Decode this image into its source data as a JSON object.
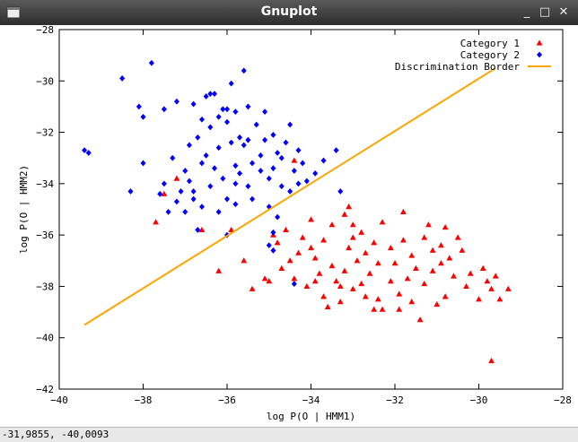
{
  "window": {
    "title": "Gnuplot",
    "minimize_icon": "minimize-icon",
    "maximize_icon": "maximize-icon",
    "close_icon": "close-icon"
  },
  "status": {
    "coordinates": "-31,9855, -40,0093"
  },
  "chart_data": {
    "type": "scatter",
    "xlabel": "log P(O | HMM1)",
    "ylabel": "log P(O | HMM2)",
    "xlim": [
      -40,
      -28
    ],
    "ylim": [
      -42,
      -28
    ],
    "xticks": [
      -40,
      -38,
      -36,
      -34,
      -32,
      -30,
      -28
    ],
    "yticks": [
      -42,
      -40,
      -38,
      -36,
      -34,
      -32,
      -30,
      -28
    ],
    "xtick_labels": [
      "−40",
      "−38",
      "−36",
      "−34",
      "−32",
      "−30",
      "−28"
    ],
    "ytick_labels": [
      "−42",
      "−40",
      "−38",
      "−36",
      "−34",
      "−32",
      "−30",
      "−28"
    ],
    "grid": false,
    "legend_position": "top-right",
    "series": [
      {
        "name": "Category 1",
        "marker": "triangle",
        "color": "#ff0000",
        "points": [
          [
            -37.7,
            -35.5
          ],
          [
            -37.5,
            -34.4
          ],
          [
            -37.2,
            -33.8
          ],
          [
            -36.2,
            -37.4
          ],
          [
            -35.9,
            -35.8
          ],
          [
            -35.6,
            -37.0
          ],
          [
            -35.4,
            -38.1
          ],
          [
            -35.1,
            -37.7
          ],
          [
            -34.9,
            -36.0
          ],
          [
            -34.8,
            -36.3
          ],
          [
            -34.7,
            -37.3
          ],
          [
            -34.6,
            -35.8
          ],
          [
            -34.5,
            -37.0
          ],
          [
            -34.4,
            -37.7
          ],
          [
            -34.4,
            -33.1
          ],
          [
            -34.3,
            -36.7
          ],
          [
            -34.2,
            -36.1
          ],
          [
            -34.1,
            -38.0
          ],
          [
            -34.0,
            -36.5
          ],
          [
            -33.9,
            -36.9
          ],
          [
            -33.9,
            -37.8
          ],
          [
            -33.8,
            -37.5
          ],
          [
            -33.7,
            -36.2
          ],
          [
            -33.7,
            -38.4
          ],
          [
            -33.6,
            -38.8
          ],
          [
            -33.5,
            -35.6
          ],
          [
            -33.5,
            -37.2
          ],
          [
            -33.4,
            -37.8
          ],
          [
            -33.3,
            -38.0
          ],
          [
            -33.3,
            -38.6
          ],
          [
            -33.2,
            -35.2
          ],
          [
            -33.2,
            -37.4
          ],
          [
            -33.1,
            -34.9
          ],
          [
            -33.1,
            -36.5
          ],
          [
            -33.0,
            -36.1
          ],
          [
            -33.0,
            -38.1
          ],
          [
            -32.9,
            -37.0
          ],
          [
            -32.8,
            -35.9
          ],
          [
            -32.8,
            -37.9
          ],
          [
            -32.7,
            -38.4
          ],
          [
            -32.7,
            -36.7
          ],
          [
            -32.6,
            -37.5
          ],
          [
            -32.5,
            -38.9
          ],
          [
            -32.5,
            -36.3
          ],
          [
            -32.4,
            -37.1
          ],
          [
            -32.4,
            -38.5
          ],
          [
            -32.3,
            -35.5
          ],
          [
            -32.3,
            -38.9
          ],
          [
            -32.1,
            -37.8
          ],
          [
            -32.1,
            -36.5
          ],
          [
            -32.0,
            -37.1
          ],
          [
            -31.9,
            -38.3
          ],
          [
            -31.9,
            -38.9
          ],
          [
            -31.8,
            -36.2
          ],
          [
            -31.8,
            -35.1
          ],
          [
            -31.7,
            -37.7
          ],
          [
            -31.6,
            -36.8
          ],
          [
            -31.6,
            -38.6
          ],
          [
            -31.5,
            -37.3
          ],
          [
            -31.4,
            -39.3
          ],
          [
            -31.3,
            -36.1
          ],
          [
            -31.3,
            -37.9
          ],
          [
            -31.2,
            -35.6
          ],
          [
            -31.1,
            -36.6
          ],
          [
            -31.1,
            -37.4
          ],
          [
            -31.0,
            -38.7
          ],
          [
            -30.9,
            -36.4
          ],
          [
            -30.9,
            -37.1
          ],
          [
            -30.8,
            -35.7
          ],
          [
            -30.8,
            -38.4
          ],
          [
            -30.7,
            -36.9
          ],
          [
            -30.6,
            -37.6
          ],
          [
            -30.5,
            -36.1
          ],
          [
            -30.4,
            -36.6
          ],
          [
            -30.3,
            -38.0
          ],
          [
            -30.2,
            -37.5
          ],
          [
            -30.0,
            -38.5
          ],
          [
            -29.9,
            -37.3
          ],
          [
            -29.8,
            -37.8
          ],
          [
            -29.7,
            -38.1
          ],
          [
            -29.7,
            -40.9
          ],
          [
            -29.6,
            -37.6
          ],
          [
            -29.5,
            -38.5
          ],
          [
            -29.3,
            -38.1
          ],
          [
            -36.6,
            -35.8
          ],
          [
            -35.0,
            -37.8
          ],
          [
            -34.0,
            -35.4
          ],
          [
            -33.0,
            -35.6
          ]
        ]
      },
      {
        "name": "Category 2",
        "marker": "diamond",
        "color": "#0000ff",
        "points": [
          [
            -39.4,
            -32.7
          ],
          [
            -39.3,
            -32.8
          ],
          [
            -38.5,
            -29.9
          ],
          [
            -38.3,
            -34.3
          ],
          [
            -38.1,
            -31.0
          ],
          [
            -38.0,
            -31.4
          ],
          [
            -38.0,
            -33.2
          ],
          [
            -37.8,
            -29.3
          ],
          [
            -37.6,
            -34.4
          ],
          [
            -37.5,
            -34.0
          ],
          [
            -37.5,
            -31.1
          ],
          [
            -37.4,
            -35.1
          ],
          [
            -37.3,
            -33.0
          ],
          [
            -37.2,
            -34.7
          ],
          [
            -37.2,
            -30.8
          ],
          [
            -37.1,
            -34.3
          ],
          [
            -37.0,
            -33.5
          ],
          [
            -36.9,
            -32.5
          ],
          [
            -36.9,
            -33.9
          ],
          [
            -36.8,
            -34.3
          ],
          [
            -36.8,
            -30.9
          ],
          [
            -36.7,
            -32.2
          ],
          [
            -36.7,
            -35.8
          ],
          [
            -36.6,
            -31.5
          ],
          [
            -36.6,
            -33.2
          ],
          [
            -36.6,
            -34.9
          ],
          [
            -36.5,
            -30.6
          ],
          [
            -36.5,
            -32.9
          ],
          [
            -36.4,
            -31.8
          ],
          [
            -36.4,
            -34.1
          ],
          [
            -36.3,
            -30.5
          ],
          [
            -36.3,
            -33.4
          ],
          [
            -36.2,
            -31.4
          ],
          [
            -36.2,
            -32.6
          ],
          [
            -36.2,
            -35.1
          ],
          [
            -36.1,
            -31.1
          ],
          [
            -36.1,
            -33.8
          ],
          [
            -36.0,
            -31.6
          ],
          [
            -36.0,
            -34.6
          ],
          [
            -36.0,
            -31.1
          ],
          [
            -35.9,
            -32.4
          ],
          [
            -35.9,
            -30.1
          ],
          [
            -35.8,
            -33.3
          ],
          [
            -35.8,
            -34.0
          ],
          [
            -35.8,
            -31.2
          ],
          [
            -35.7,
            -32.2
          ],
          [
            -35.7,
            -33.6
          ],
          [
            -35.6,
            -29.6
          ],
          [
            -35.6,
            -32.5
          ],
          [
            -35.5,
            -34.1
          ],
          [
            -35.5,
            -31.0
          ],
          [
            -35.5,
            -32.3
          ],
          [
            -35.4,
            -33.2
          ],
          [
            -35.4,
            -34.6
          ],
          [
            -35.3,
            -31.7
          ],
          [
            -35.2,
            -32.9
          ],
          [
            -35.2,
            -33.5
          ],
          [
            -35.1,
            -31.2
          ],
          [
            -35.1,
            -32.3
          ],
          [
            -35.0,
            -33.8
          ],
          [
            -35.0,
            -34.9
          ],
          [
            -34.9,
            -32.1
          ],
          [
            -34.9,
            -33.4
          ],
          [
            -34.8,
            -35.3
          ],
          [
            -34.8,
            -32.8
          ],
          [
            -34.7,
            -33.0
          ],
          [
            -34.7,
            -34.1
          ],
          [
            -34.6,
            -32.4
          ],
          [
            -34.5,
            -31.7
          ],
          [
            -34.5,
            -34.3
          ],
          [
            -34.4,
            -33.5
          ],
          [
            -34.3,
            -32.7
          ],
          [
            -34.3,
            -34.0
          ],
          [
            -34.2,
            -33.2
          ],
          [
            -34.1,
            -33.9
          ],
          [
            -33.9,
            -33.6
          ],
          [
            -33.7,
            -33.1
          ],
          [
            -33.4,
            -32.7
          ],
          [
            -33.3,
            -34.3
          ],
          [
            -34.9,
            -36.6
          ],
          [
            -34.9,
            -35.9
          ],
          [
            -35.0,
            -36.4
          ],
          [
            -36.0,
            -36.0
          ],
          [
            -34.4,
            -37.9
          ],
          [
            -35.8,
            -34.8
          ],
          [
            -36.8,
            -34.6
          ],
          [
            -37.0,
            -35.1
          ],
          [
            -36.4,
            -30.5
          ]
        ]
      },
      {
        "name": "Discrimination Border",
        "type": "line",
        "color": "#ffa500",
        "points": [
          [
            -39.4,
            -39.5
          ],
          [
            -29.6,
            -29.5
          ]
        ]
      }
    ]
  }
}
